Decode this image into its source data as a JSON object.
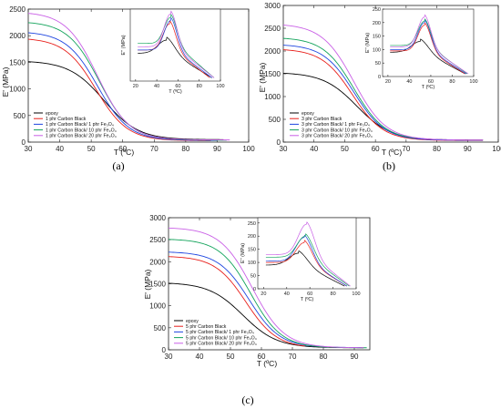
{
  "colors": {
    "epoxy": "#000000",
    "cb": "#e8201c",
    "fe1": "#1e46e0",
    "fe10": "#12a35a",
    "fe20": "#c95fe6"
  },
  "chart_data": [
    {
      "panel_label": "(a)",
      "type": "line",
      "xlabel": "T (ºC)",
      "ylabel": "E' (MPa)",
      "xlim": [
        30,
        100
      ],
      "ylim": [
        0,
        2500
      ],
      "xticks": [
        "30",
        "40",
        "50",
        "60",
        "70",
        "80",
        "90",
        "100"
      ],
      "yticks": [
        "0",
        "500",
        "1000",
        "1500",
        "2000",
        "2500"
      ],
      "legend_position": "bottom-left",
      "series": [
        {
          "name": "epoxy",
          "color_key": "epoxy",
          "e0": 1530,
          "tm": 54,
          "w": 5.5,
          "tail": 45,
          "xmax": 92
        },
        {
          "name": "1 phr Carbon Black",
          "color_key": "cb",
          "e0": 1960,
          "tm": 51.5,
          "w": 5,
          "tail": 25,
          "xmax": 88
        },
        {
          "name": "1 phr Carbon Black/ 1 phr Fe₃O₄",
          "color_key": "fe1",
          "e0": 2080,
          "tm": 52,
          "w": 5,
          "tail": 30,
          "xmax": 90
        },
        {
          "name": "1 phr Carbon Black/ 10 phr Fe₃O₄",
          "color_key": "fe10",
          "e0": 2270,
          "tm": 52.5,
          "w": 5,
          "tail": 35,
          "xmax": 93
        },
        {
          "name": "1 phr Carbon Black/ 20 phr Fe₃O₄",
          "color_key": "fe20",
          "e0": 2450,
          "tm": 52,
          "w": 5,
          "tail": 40,
          "xmax": 94
        }
      ],
      "inset": {
        "xlabel": "T (ºC)",
        "ylabel": "E'' (MPa)",
        "xlim": [
          15,
          100
        ],
        "ylim": [
          0,
          220
        ],
        "xticks": [
          "20",
          "40",
          "60",
          "80",
          "100"
        ],
        "yticks": [],
        "series": [
          {
            "color_key": "epoxy",
            "base": 85,
            "peak": 125,
            "tp": 49,
            "sig": 8,
            "end": 92
          },
          {
            "color_key": "cb",
            "base": 95,
            "peak": 175,
            "tp": 52,
            "sig": 6,
            "end": 90
          },
          {
            "color_key": "fe1",
            "base": 95,
            "peak": 185,
            "tp": 53,
            "sig": 6,
            "end": 92
          },
          {
            "color_key": "fe10",
            "base": 115,
            "peak": 195,
            "tp": 53,
            "sig": 6,
            "end": 94
          },
          {
            "color_key": "fe20",
            "base": 105,
            "peak": 205,
            "tp": 53,
            "sig": 6,
            "end": 94
          }
        ]
      }
    },
    {
      "panel_label": "(b)",
      "type": "line",
      "xlabel": "T (ºC)",
      "ylabel": "E' (MPa)",
      "xlim": [
        30,
        100
      ],
      "ylim": [
        0,
        3000
      ],
      "xticks": [
        "30",
        "40",
        "50",
        "60",
        "70",
        "80",
        "90",
        "100"
      ],
      "yticks": [
        "0",
        "500",
        "1000",
        "1500",
        "2000",
        "2500",
        "3000"
      ],
      "legend_position": "bottom-left",
      "series": [
        {
          "name": "epoxy",
          "color_key": "epoxy",
          "e0": 1530,
          "tm": 54,
          "w": 5.5,
          "tail": 45,
          "xmax": 95
        },
        {
          "name": "3 phr Carbon Black",
          "color_key": "cb",
          "e0": 2050,
          "tm": 52.5,
          "w": 5,
          "tail": 35,
          "xmax": 95
        },
        {
          "name": "3 phr Carbon Black/ 1 phr Fe₃O₄",
          "color_key": "fe1",
          "e0": 2150,
          "tm": 53,
          "w": 5,
          "tail": 40,
          "xmax": 95
        },
        {
          "name": "3 phr Carbon Black/ 10 phr Fe₃O₄",
          "color_key": "fe10",
          "e0": 2300,
          "tm": 53,
          "w": 5,
          "tail": 50,
          "xmax": 73
        },
        {
          "name": "3 phr Carbon Black/ 20 phr Fe₃O₄",
          "color_key": "fe20",
          "e0": 2600,
          "tm": 53,
          "w": 5.2,
          "tail": 45,
          "xmax": 95
        }
      ],
      "inset": {
        "xlabel": "T (ºC)",
        "ylabel": "E'' (MPa)",
        "xlim": [
          15,
          100
        ],
        "ylim": [
          0,
          250
        ],
        "xticks": [
          "20",
          "40",
          "60",
          "80",
          "100"
        ],
        "yticks": [
          "0",
          "50",
          "100",
          "150",
          "200",
          "250"
        ],
        "series": [
          {
            "color_key": "epoxy",
            "base": 90,
            "peak": 130,
            "tp": 50,
            "sig": 8,
            "end": 92
          },
          {
            "color_key": "cb",
            "base": 95,
            "peak": 190,
            "tp": 54,
            "sig": 6,
            "end": 92
          },
          {
            "color_key": "fe1",
            "base": 100,
            "peak": 200,
            "tp": 54,
            "sig": 6,
            "end": 93
          },
          {
            "color_key": "fe10",
            "base": 115,
            "peak": 205,
            "tp": 54,
            "sig": 6,
            "end": 94
          },
          {
            "color_key": "fe20",
            "base": 110,
            "peak": 220,
            "tp": 54,
            "sig": 6,
            "end": 95
          }
        ]
      }
    },
    {
      "panel_label": "(c)",
      "type": "line",
      "xlabel": "T (ºC)",
      "ylabel": "E' (MPa)",
      "xlim": [
        30,
        95
      ],
      "ylim": [
        0,
        3000
      ],
      "xticks": [
        "30",
        "40",
        "50",
        "60",
        "70",
        "80",
        "90"
      ],
      "yticks": [
        "0",
        "500",
        "1000",
        "1500",
        "2000",
        "2500",
        "3000"
      ],
      "legend_position": "bottom-left",
      "series": [
        {
          "name": "epoxy",
          "color_key": "epoxy",
          "e0": 1530,
          "tm": 54,
          "w": 5.5,
          "tail": 45,
          "xmax": 93
        },
        {
          "name": "5 phr Carbon Black",
          "color_key": "cb",
          "e0": 2130,
          "tm": 55,
          "w": 5,
          "tail": 40,
          "xmax": 74
        },
        {
          "name": "5 phr Carbon Black/ 1 phr Fe₃O₄",
          "color_key": "fe1",
          "e0": 2230,
          "tm": 56,
          "w": 5,
          "tail": 50,
          "xmax": 92
        },
        {
          "name": "5 phr Carbon Black/ 10 phr Fe₃O₄",
          "color_key": "fe10",
          "e0": 2520,
          "tm": 56.5,
          "w": 5,
          "tail": 45,
          "xmax": 94
        },
        {
          "name": "5 phr Carbon Black/ 20 phr Fe₃O₄",
          "color_key": "fe20",
          "e0": 2780,
          "tm": 57,
          "w": 5.2,
          "tail": 45,
          "xmax": 93
        }
      ],
      "inset": {
        "xlabel": "T (ºC)",
        "ylabel": "E'' (MPa)",
        "xlim": [
          15,
          100
        ],
        "ylim": [
          0,
          270
        ],
        "xticks": [
          "20",
          "40",
          "60",
          "80",
          "100"
        ],
        "yticks": [
          "0",
          "50",
          "100",
          "150",
          "200",
          "250"
        ],
        "series": [
          {
            "color_key": "epoxy",
            "base": 90,
            "peak": 135,
            "tp": 50,
            "sig": 8,
            "end": 90
          },
          {
            "color_key": "cb",
            "base": 100,
            "peak": 175,
            "tp": 55,
            "sig": 7,
            "end": 92
          },
          {
            "color_key": "fe1",
            "base": 105,
            "peak": 195,
            "tp": 55,
            "sig": 7,
            "end": 92
          },
          {
            "color_key": "fe10",
            "base": 120,
            "peak": 200,
            "tp": 56,
            "sig": 7,
            "end": 94
          },
          {
            "color_key": "fe20",
            "base": 130,
            "peak": 245,
            "tp": 57,
            "sig": 7,
            "end": 95
          }
        ]
      }
    }
  ]
}
